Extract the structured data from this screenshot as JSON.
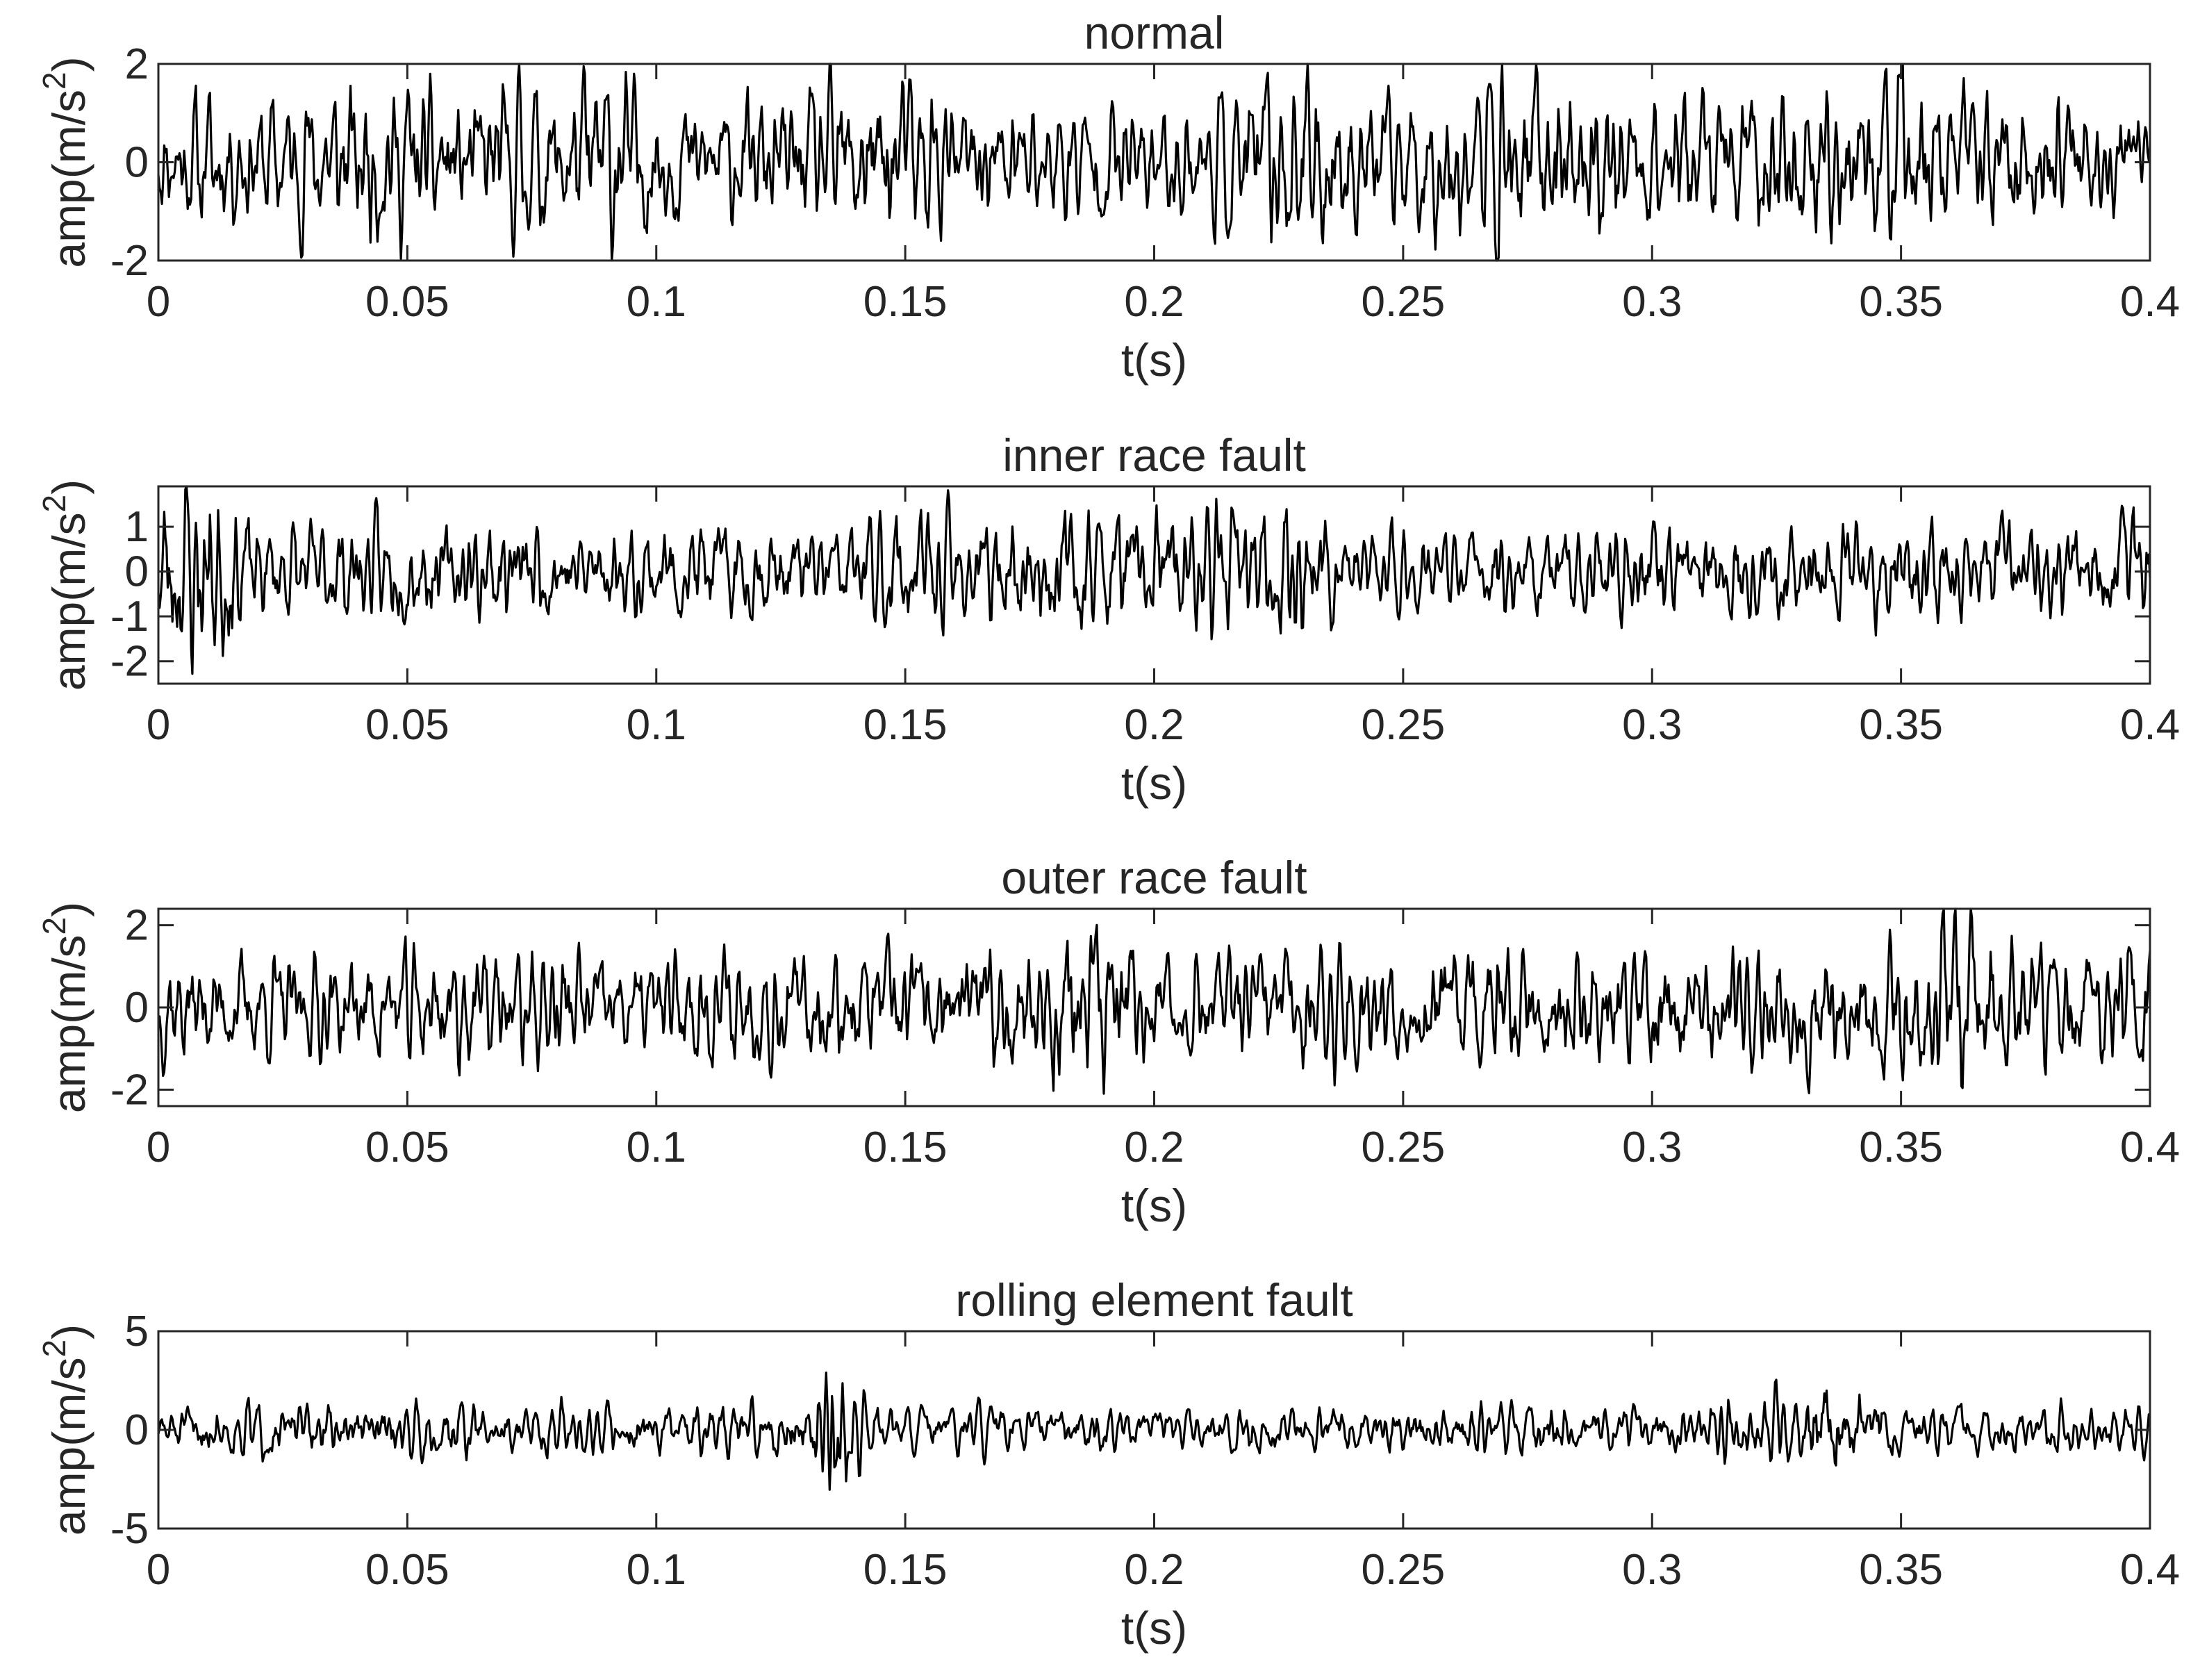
{
  "chart_data": [
    {
      "type": "line",
      "title": "normal",
      "xlabel": "t(s)",
      "ylabel": "amp(m/s",
      "ylabel_sup": "2",
      "ylabel_close": ")",
      "xlim": [
        0,
        0.4
      ],
      "ylim": [
        -2,
        2
      ],
      "xticks": [
        0,
        0.05,
        0.1,
        0.15,
        0.2,
        0.25,
        0.3,
        0.35,
        0.4
      ],
      "xtick_labels": [
        "0",
        "0.05",
        "0.1",
        "0.15",
        "0.2",
        "0.25",
        "0.3",
        "0.35",
        "0.4"
      ],
      "yticks": [
        -2,
        0,
        2
      ],
      "ytick_labels": [
        "-2",
        "0",
        "2"
      ],
      "series": [
        {
          "x": [
            0,
            0.01,
            0.02,
            0.03,
            0.04,
            0.05,
            0.06,
            0.07,
            0.08,
            0.09,
            0.1,
            0.11,
            0.12,
            0.13,
            0.14,
            0.15,
            0.16,
            0.17,
            0.18,
            0.19,
            0.2,
            0.21,
            0.22,
            0.23,
            0.24,
            0.25,
            0.26,
            0.27,
            0.28,
            0.29,
            0.3,
            0.31,
            0.32,
            0.33,
            0.34,
            0.35,
            0.36,
            0.37,
            0.38,
            0.39,
            0.4
          ],
          "envelope": [
            0.9,
            1.2,
            1.1,
            1.3,
            1.5,
            1.4,
            1.1,
            1.4,
            1.2,
            1.8,
            1.2,
            1.0,
            1.1,
            1.2,
            1.5,
            1.6,
            1.0,
            1.1,
            1.0,
            1.1,
            0.9,
            1.0,
            1.4,
            1.8,
            1.2,
            1.1,
            1.3,
            1.5,
            1.7,
            1.3,
            1.2,
            1.4,
            1.3,
            1.5,
            1.3,
            1.6,
            1.3,
            1.1,
            1.2,
            1.0,
            0.9
          ],
          "seed": 11
        }
      ]
    },
    {
      "type": "line",
      "title": "inner race fault",
      "xlabel": "t(s)",
      "ylabel": "amp(m/s",
      "ylabel_sup": "2",
      "ylabel_close": ")",
      "xlim": [
        0,
        0.4
      ],
      "ylim": [
        -2.5,
        1.9
      ],
      "xticks": [
        0,
        0.05,
        0.1,
        0.15,
        0.2,
        0.25,
        0.3,
        0.35,
        0.4
      ],
      "xtick_labels": [
        "0",
        "0.05",
        "0.1",
        "0.15",
        "0.2",
        "0.25",
        "0.3",
        "0.35",
        "0.4"
      ],
      "yticks": [
        -2,
        -1,
        0,
        1
      ],
      "ytick_labels": [
        "-2",
        "-1",
        "0",
        "1"
      ],
      "series": [
        {
          "x": [
            0,
            0.01,
            0.02,
            0.03,
            0.04,
            0.05,
            0.06,
            0.07,
            0.08,
            0.09,
            0.1,
            0.11,
            0.12,
            0.13,
            0.14,
            0.15,
            0.16,
            0.17,
            0.18,
            0.19,
            0.2,
            0.21,
            0.22,
            0.23,
            0.24,
            0.25,
            0.26,
            0.27,
            0.28,
            0.29,
            0.3,
            0.31,
            0.32,
            0.33,
            0.34,
            0.35,
            0.36,
            0.37,
            0.38,
            0.39,
            0.4
          ],
          "envelope": [
            1.7,
            2.2,
            0.9,
            0.9,
            1.0,
            1.0,
            0.9,
            1.1,
            0.9,
            0.8,
            0.9,
            1.0,
            0.9,
            0.9,
            0.9,
            1.3,
            1.0,
            0.9,
            1.3,
            1.1,
            1.2,
            1.1,
            1.2,
            1.4,
            0.8,
            0.8,
            0.8,
            0.9,
            0.8,
            0.8,
            0.9,
            0.9,
            0.9,
            0.9,
            0.9,
            1.0,
            0.9,
            1.0,
            0.9,
            0.9,
            1.1
          ],
          "seed": 23
        }
      ]
    },
    {
      "type": "line",
      "title": "outer race fault",
      "xlabel": "t(s)",
      "ylabel": "amp(m/s",
      "ylabel_sup": "2",
      "ylabel_close": ")",
      "xlim": [
        0,
        0.4
      ],
      "ylim": [
        -2.4,
        2.4
      ],
      "xticks": [
        0,
        0.05,
        0.1,
        0.15,
        0.2,
        0.25,
        0.3,
        0.35,
        0.4
      ],
      "xtick_labels": [
        "0",
        "0.05",
        "0.1",
        "0.15",
        "0.2",
        "0.25",
        "0.3",
        "0.35",
        "0.4"
      ],
      "yticks": [
        -2,
        0,
        2
      ],
      "ytick_labels": [
        "-2",
        "0",
        "2"
      ],
      "series": [
        {
          "x": [
            0,
            0.01,
            0.02,
            0.03,
            0.04,
            0.05,
            0.06,
            0.07,
            0.08,
            0.09,
            0.1,
            0.11,
            0.12,
            0.13,
            0.14,
            0.15,
            0.16,
            0.17,
            0.18,
            0.19,
            0.2,
            0.21,
            0.22,
            0.23,
            0.24,
            0.25,
            0.26,
            0.27,
            0.28,
            0.29,
            0.3,
            0.31,
            0.32,
            0.33,
            0.34,
            0.35,
            0.36,
            0.37,
            0.38,
            0.39,
            0.4
          ],
          "envelope": [
            1.3,
            1.0,
            1.1,
            1.0,
            1.1,
            1.2,
            1.3,
            1.1,
            1.4,
            1.0,
            1.1,
            1.2,
            1.2,
            1.1,
            1.3,
            1.2,
            1.1,
            1.3,
            1.8,
            1.9,
            1.1,
            1.1,
            1.2,
            1.3,
            1.2,
            1.2,
            1.3,
            1.4,
            1.4,
            1.2,
            1.3,
            1.2,
            1.3,
            1.4,
            1.3,
            1.5,
            2.3,
            1.6,
            1.2,
            1.3,
            1.5
          ],
          "seed": 37
        }
      ]
    },
    {
      "type": "line",
      "title": "rolling element fault",
      "xlabel": "t(s)",
      "ylabel": "amp(m/s",
      "ylabel_sup": "2",
      "ylabel_close": ")",
      "xlim": [
        0,
        0.4
      ],
      "ylim": [
        -5,
        5
      ],
      "xticks": [
        0,
        0.05,
        0.1,
        0.15,
        0.2,
        0.25,
        0.3,
        0.35,
        0.4
      ],
      "xtick_labels": [
        "0",
        "0.05",
        "0.1",
        "0.15",
        "0.2",
        "0.25",
        "0.3",
        "0.35",
        "0.4"
      ],
      "yticks": [
        -5,
        0,
        5
      ],
      "ytick_labels": [
        "-5",
        "0",
        "5"
      ],
      "series": [
        {
          "x": [
            0,
            0.01,
            0.02,
            0.03,
            0.04,
            0.05,
            0.06,
            0.07,
            0.08,
            0.09,
            0.1,
            0.11,
            0.12,
            0.13,
            0.135,
            0.14,
            0.145,
            0.15,
            0.16,
            0.17,
            0.18,
            0.19,
            0.2,
            0.21,
            0.22,
            0.23,
            0.24,
            0.25,
            0.26,
            0.27,
            0.28,
            0.29,
            0.3,
            0.31,
            0.32,
            0.33,
            0.335,
            0.34,
            0.35,
            0.36,
            0.37,
            0.38,
            0.39,
            0.4
          ],
          "envelope": [
            0.8,
            1.2,
            1.2,
            1.1,
            1.0,
            1.2,
            1.3,
            1.0,
            1.1,
            1.0,
            1.0,
            1.1,
            1.3,
            1.5,
            4.0,
            2.6,
            1.2,
            0.9,
            0.9,
            1.0,
            0.9,
            0.9,
            0.9,
            0.8,
            1.0,
            0.9,
            0.9,
            1.0,
            1.0,
            1.2,
            1.2,
            1.0,
            1.0,
            1.1,
            1.5,
            1.7,
            2.8,
            1.9,
            1.2,
            1.1,
            1.0,
            1.1,
            1.0,
            0.8
          ],
          "seed": 51
        }
      ]
    }
  ]
}
